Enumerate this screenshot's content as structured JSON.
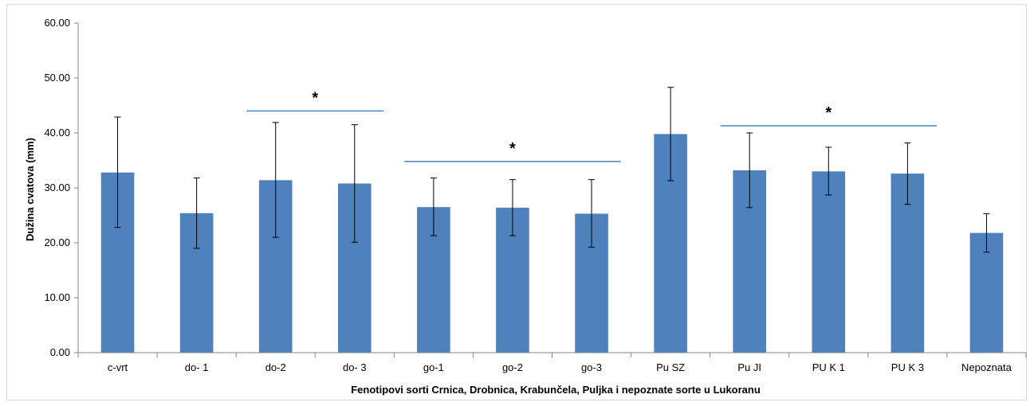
{
  "chart_data": {
    "type": "bar",
    "title": "",
    "xlabel": "Fenotipovi  sorti Crnica, Drobnica, Krabunčela, Puljka i nepoznate sorte u Lukoranu",
    "ylabel": "Dužina cvatova (mm)",
    "ylim": [
      0,
      60
    ],
    "yticks": [
      "0.00",
      "10.00",
      "20.00",
      "30.00",
      "40.00",
      "50.00",
      "60.00"
    ],
    "grid": false,
    "bar_color": "#4f81bd",
    "categories": [
      "c-vrt",
      "do- 1",
      "do-2",
      "do- 3",
      "go-1",
      "go-2",
      "go-3",
      "Pu SZ",
      "Pu  JI",
      "PU K 1",
      "PU K 3",
      "Nepoznata"
    ],
    "values": [
      32.8,
      25.4,
      31.4,
      30.8,
      26.5,
      26.4,
      25.3,
      39.8,
      33.2,
      33.0,
      32.6,
      21.8
    ],
    "error_low": [
      22.8,
      19.0,
      21.0,
      20.1,
      21.3,
      21.3,
      19.2,
      31.3,
      26.4,
      28.7,
      27.0,
      18.3
    ],
    "error_high": [
      42.9,
      31.8,
      41.9,
      41.5,
      31.8,
      31.5,
      31.5,
      48.3,
      40.0,
      37.4,
      38.2,
      25.3
    ],
    "annotations": [
      {
        "label": "*",
        "from": "do-2",
        "to": "do- 3",
        "y": 44.0,
        "color": "#4f81bd"
      },
      {
        "label": "*",
        "from": "go-1",
        "to": "go-3",
        "y": 34.8,
        "color": "#4f81bd"
      },
      {
        "label": "*",
        "from": "Pu  JI",
        "to": "PU K 3",
        "y": 41.3,
        "color": "#4f81bd"
      }
    ]
  }
}
